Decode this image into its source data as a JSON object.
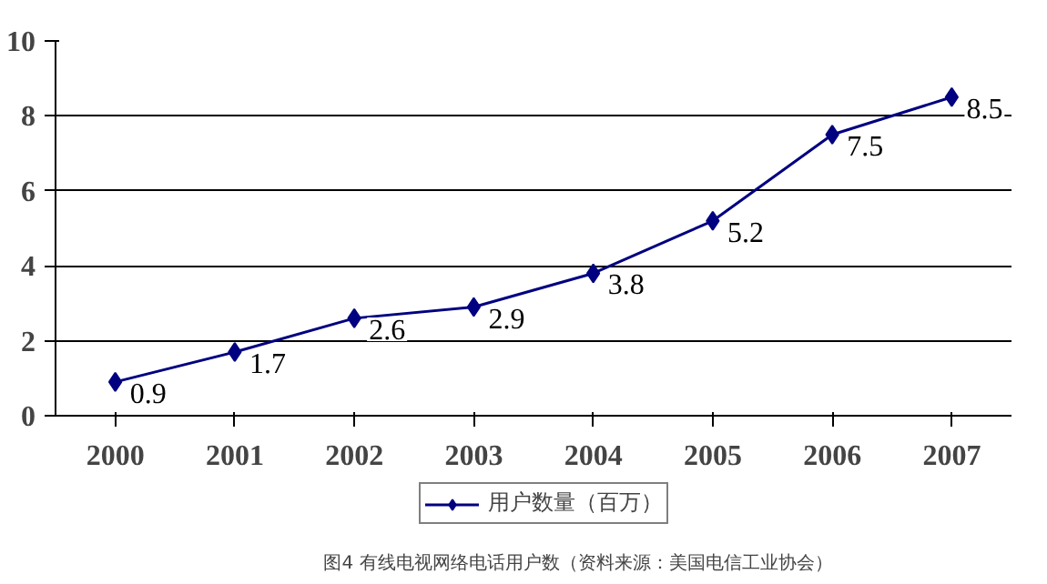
{
  "chart_data": {
    "type": "line",
    "categories": [
      "2000",
      "2001",
      "2002",
      "2003",
      "2004",
      "2005",
      "2006",
      "2007"
    ],
    "series": [
      {
        "name": "用户数量（百万）",
        "color": "#000080",
        "values": [
          0.9,
          1.7,
          2.6,
          2.9,
          3.8,
          5.2,
          7.5,
          8.5
        ]
      }
    ],
    "ylim": [
      0,
      10
    ],
    "yticks": [
      0,
      2,
      4,
      6,
      8,
      10
    ],
    "grid": "y",
    "legend": "bottom",
    "marker": "diamond",
    "line_style": "solid",
    "data_labels": true,
    "annotations": [
      "图4 有线电视网络电话用户数（资料来源：美国电信工业协会）"
    ]
  }
}
